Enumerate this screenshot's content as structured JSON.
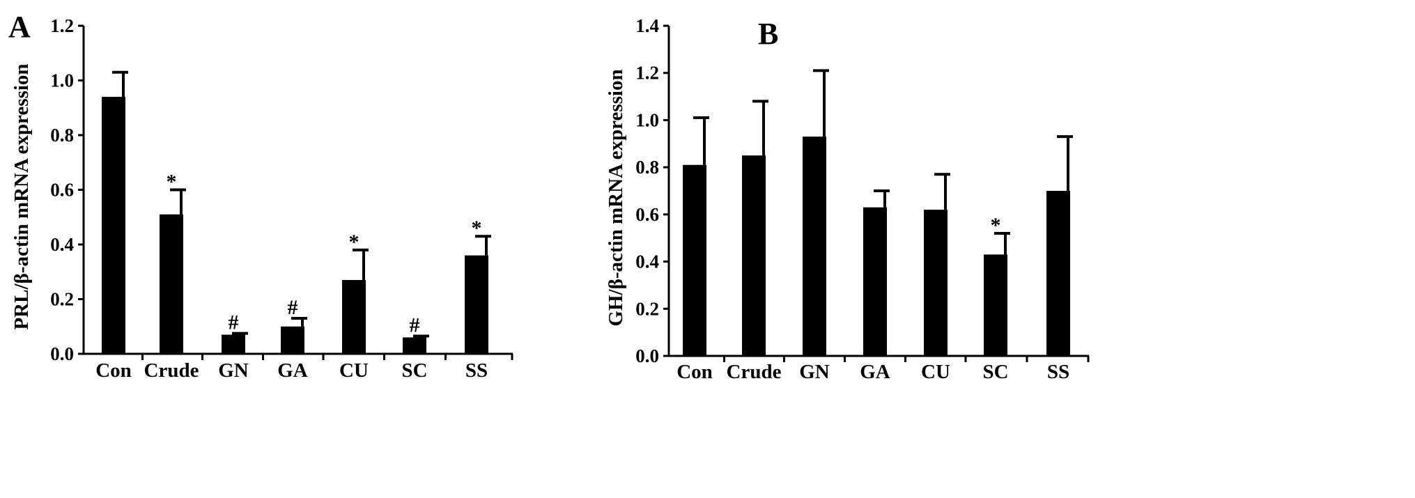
{
  "chart_data": [
    {
      "type": "bar",
      "panel": "A",
      "categories": [
        "Con",
        "Crude",
        "GN",
        "GA",
        "CU",
        "SC",
        "SS"
      ],
      "values": [
        0.94,
        0.51,
        0.07,
        0.1,
        0.27,
        0.06,
        0.36
      ],
      "errors": [
        0.09,
        0.09,
        0.005,
        0.03,
        0.11,
        0.005,
        0.07
      ],
      "significance": [
        "",
        "*",
        "#",
        "#",
        "*",
        "#",
        "*"
      ],
      "ylabel": "PRL/β-actin mRNA expression",
      "xlabel": "",
      "ylim": [
        0,
        1.2
      ],
      "yticks": [
        "0.0",
        "0.2",
        "0.4",
        "0.6",
        "0.8",
        "1.0",
        "1.2"
      ],
      "bar_color": "#000000",
      "grid": false,
      "legend": "none"
    },
    {
      "type": "bar",
      "panel": "B",
      "categories": [
        "Con",
        "Crude",
        "GN",
        "GA",
        "CU",
        "SC",
        "SS"
      ],
      "values": [
        0.81,
        0.85,
        0.93,
        0.63,
        0.62,
        0.43,
        0.7
      ],
      "errors": [
        0.2,
        0.23,
        0.28,
        0.07,
        0.15,
        0.09,
        0.23
      ],
      "significance": [
        "",
        "",
        "",
        "",
        "",
        "*",
        ""
      ],
      "ylabel": "GH/β-actin mRNA expression",
      "xlabel": "",
      "ylim": [
        0,
        1.4
      ],
      "yticks": [
        "0.0",
        "0.2",
        "0.4",
        "0.6",
        "0.8",
        "1.0",
        "1.2",
        "1.4"
      ],
      "bar_color": "#000000",
      "grid": false,
      "legend": "none"
    }
  ]
}
